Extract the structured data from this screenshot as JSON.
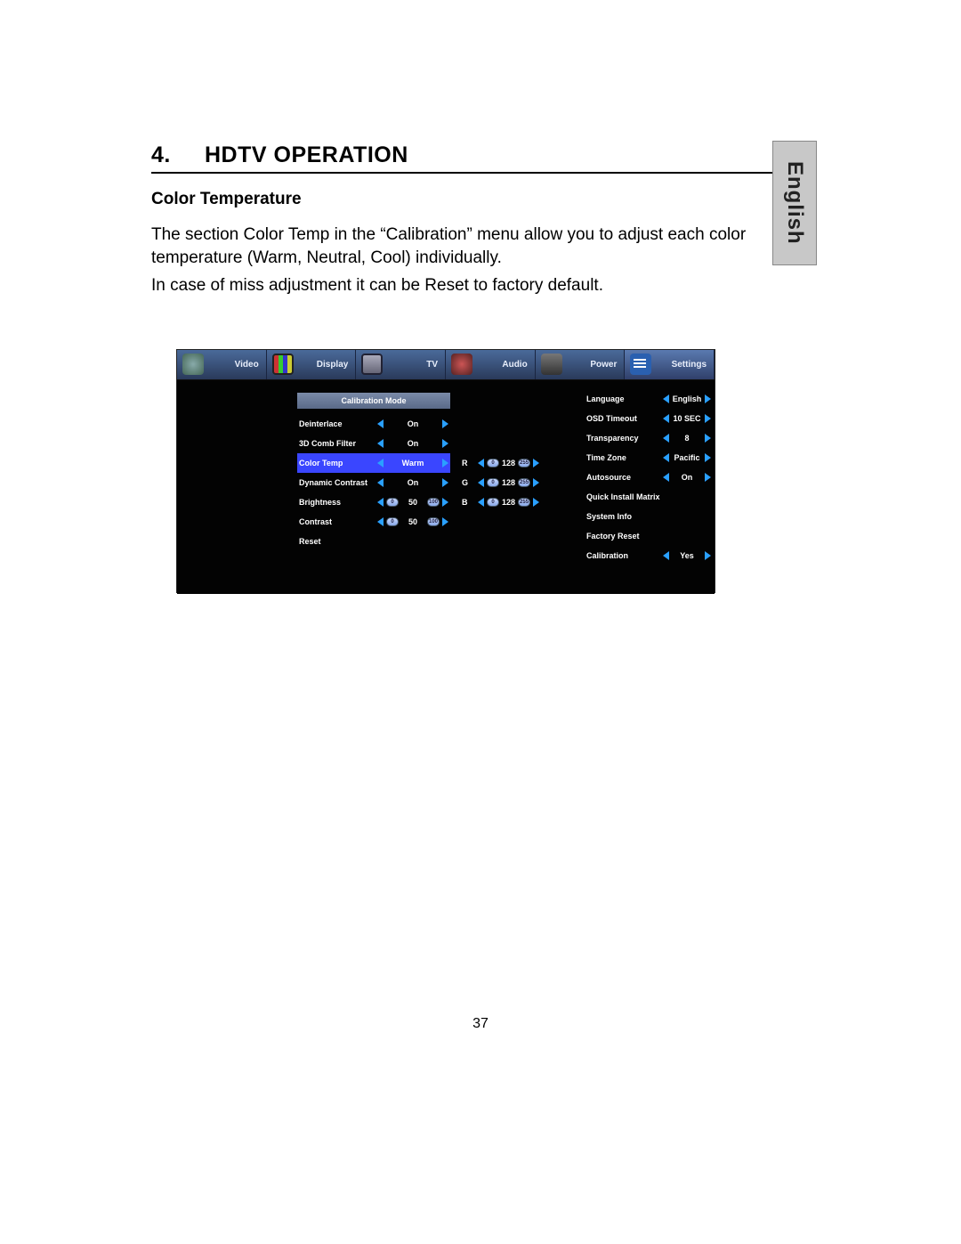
{
  "page": {
    "section_number": "4.",
    "section_title": "HDTV OPERATION",
    "subheading": "Color Temperature",
    "para1": "The section Color Temp in the “Calibration” menu allow you to adjust each color temperature (Warm, Neutral, Cool) individually.",
    "para2": " In case of miss adjustment it can be Reset to factory default.",
    "language_tab": "English",
    "page_number": "37"
  },
  "osd": {
    "tabs": [
      {
        "label": "Video",
        "icon": "video-icon"
      },
      {
        "label": "Display",
        "icon": "display-icon"
      },
      {
        "label": "TV",
        "icon": "tv-icon"
      },
      {
        "label": "Audio",
        "icon": "audio-icon"
      },
      {
        "label": "Power",
        "icon": "power-icon"
      },
      {
        "label": "Settings",
        "icon": "settings-icon"
      }
    ],
    "active_tab_index": 5,
    "calibration_header": "Calibration Mode",
    "calibration_items": [
      {
        "label": "Deinterlace",
        "type": "arrows",
        "value": "On",
        "selected": false
      },
      {
        "label": "3D Comb Filter",
        "type": "arrows",
        "value": "On",
        "selected": false
      },
      {
        "label": "Color Temp",
        "type": "arrows",
        "value": "Warm",
        "selected": true
      },
      {
        "label": "Dynamic Contrast",
        "type": "arrows",
        "value": "On",
        "selected": false
      },
      {
        "label": "Brightness",
        "type": "slider",
        "value": "50",
        "min_label": "0",
        "max_label": "100"
      },
      {
        "label": "Contrast",
        "type": "slider",
        "value": "50",
        "min_label": "0",
        "max_label": "100"
      },
      {
        "label": "Reset",
        "type": "none"
      }
    ],
    "rgb": [
      {
        "channel": "R",
        "value": "128",
        "min_label": "0",
        "max_label": "255"
      },
      {
        "channel": "G",
        "value": "128",
        "min_label": "0",
        "max_label": "255"
      },
      {
        "channel": "B",
        "value": "128",
        "min_label": "0",
        "max_label": "255"
      }
    ],
    "settings_items": [
      {
        "label": "Language",
        "type": "arrows",
        "value": "English"
      },
      {
        "label": "OSD Timeout",
        "type": "arrows",
        "value": "10 SEC"
      },
      {
        "label": "Transparency",
        "type": "arrows",
        "value": "8"
      },
      {
        "label": "Time Zone",
        "type": "arrows",
        "value": "Pacific"
      },
      {
        "label": "Autosource",
        "type": "arrows",
        "value": "On"
      },
      {
        "label": "Quick Install Matrix",
        "type": "none"
      },
      {
        "label": "System Info",
        "type": "none"
      },
      {
        "label": "Factory Reset",
        "type": "none"
      },
      {
        "label": "Calibration",
        "type": "arrows",
        "value": "Yes"
      }
    ],
    "colors": {
      "tab_bg_top": "#4a6a9a",
      "tab_bg_bottom": "#2a3a5a",
      "selected_row_bg": "#3a46ff",
      "arrow_color": "#2aa0ff",
      "body_bg": "#030303",
      "header_bar_top": "#7a8aa8",
      "header_bar_bottom": "#5a6a88",
      "text_color": "#ffffff"
    }
  }
}
